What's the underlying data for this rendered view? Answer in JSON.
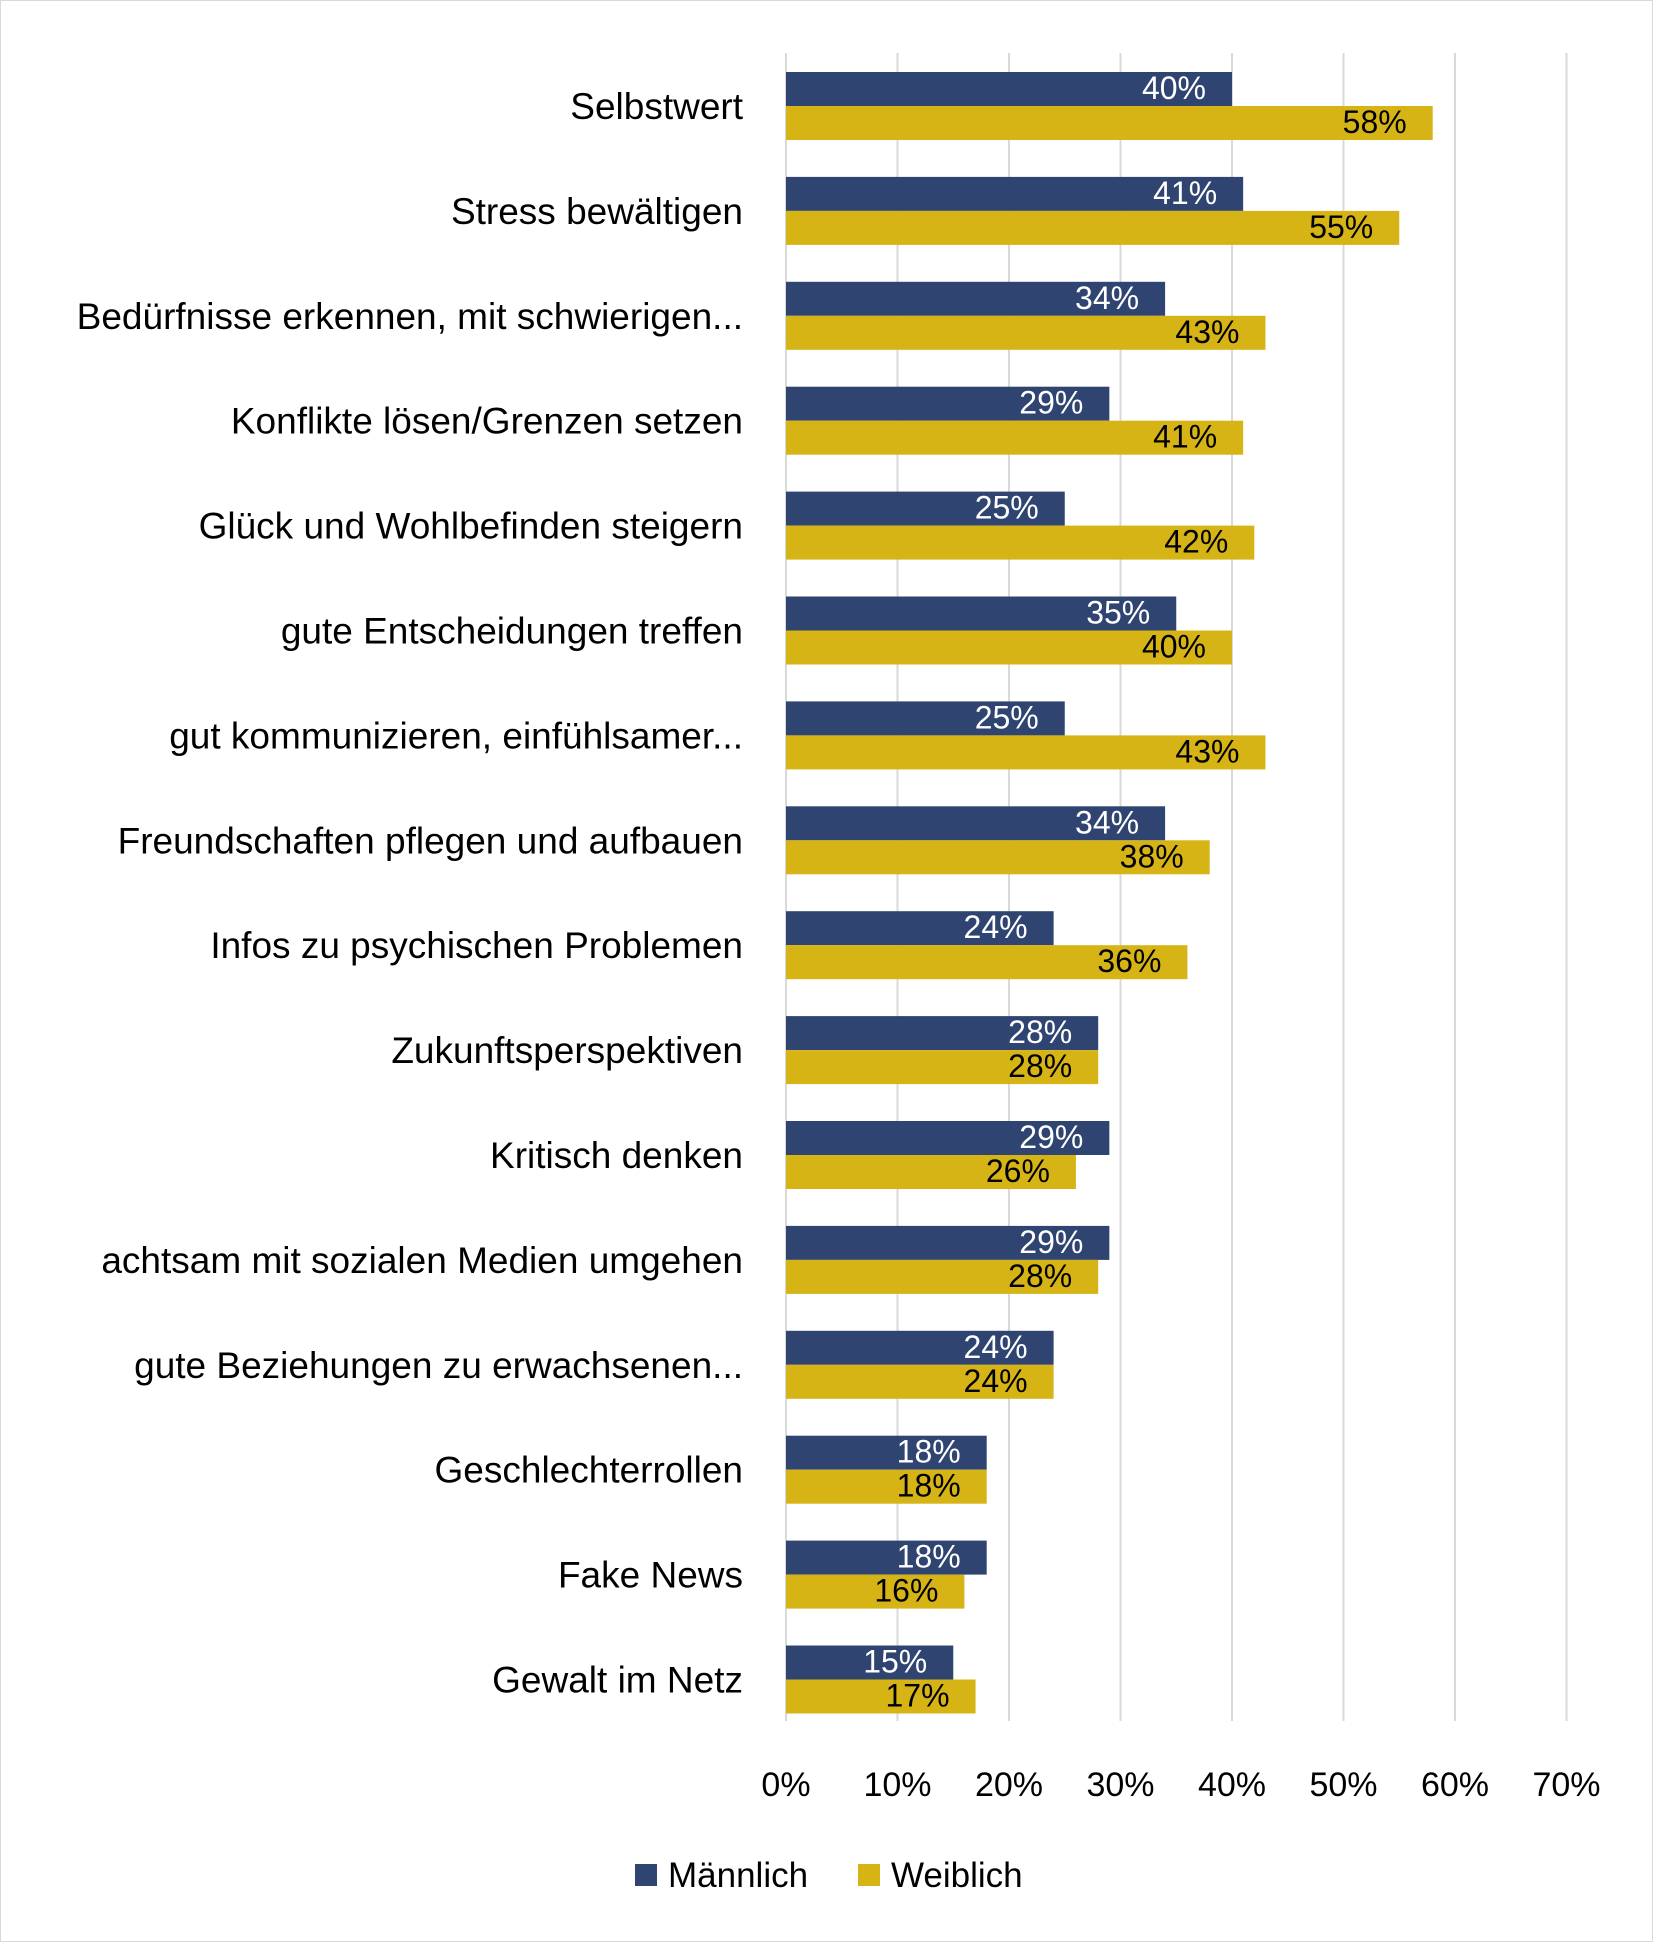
{
  "chart_data": {
    "type": "bar",
    "orientation": "horizontal",
    "title": "",
    "xlabel": "",
    "ylabel": "",
    "xlim": [
      0,
      70
    ],
    "xticks": [
      0,
      10,
      20,
      30,
      40,
      50,
      60,
      70
    ],
    "tick_labels": [
      "0%",
      "10%",
      "20%",
      "30%",
      "40%",
      "50%",
      "60%",
      "70%"
    ],
    "grid": "vertical",
    "legend": "bottom",
    "categories": [
      "Selbstwert",
      "Stress bewältigen",
      "Bedürfnisse erkennen, mit schwierigen...",
      "Konflikte lösen/Grenzen setzen",
      "Glück und Wohlbefinden steigern",
      "gute Entscheidungen treffen",
      "gut kommunizieren, einfühlsamer...",
      "Freundschaften pflegen und aufbauen",
      "Infos zu psychischen Problemen",
      "Zukunftsperspektiven",
      "Kritisch denken",
      "achtsam mit sozialen Medien umgehen",
      "gute Beziehungen zu erwachsenen...",
      "Geschlechterrollen",
      "Fake News",
      "Gewalt im Netz"
    ],
    "series": [
      {
        "name": "Männlich",
        "color": "#2f4470",
        "label_color": "#ffffff",
        "values": [
          40,
          41,
          34,
          29,
          25,
          35,
          25,
          34,
          24,
          28,
          29,
          29,
          24,
          18,
          18,
          15
        ],
        "labels": [
          "40%",
          "41%",
          "34%",
          "29%",
          "25%",
          "35%",
          "25%",
          "34%",
          "24%",
          "28%",
          "29%",
          "29%",
          "24%",
          "18%",
          "18%",
          "15%"
        ]
      },
      {
        "name": "Weiblich",
        "color": "#d6b416",
        "label_color": "#000000",
        "values": [
          58,
          55,
          43,
          41,
          42,
          40,
          43,
          38,
          36,
          28,
          26,
          28,
          24,
          18,
          16,
          17
        ],
        "labels": [
          "58%",
          "55%",
          "43%",
          "41%",
          "42%",
          "40%",
          "43%",
          "38%",
          "36%",
          "28%",
          "26%",
          "28%",
          "24%",
          "18%",
          "16%",
          "17%"
        ]
      }
    ]
  }
}
